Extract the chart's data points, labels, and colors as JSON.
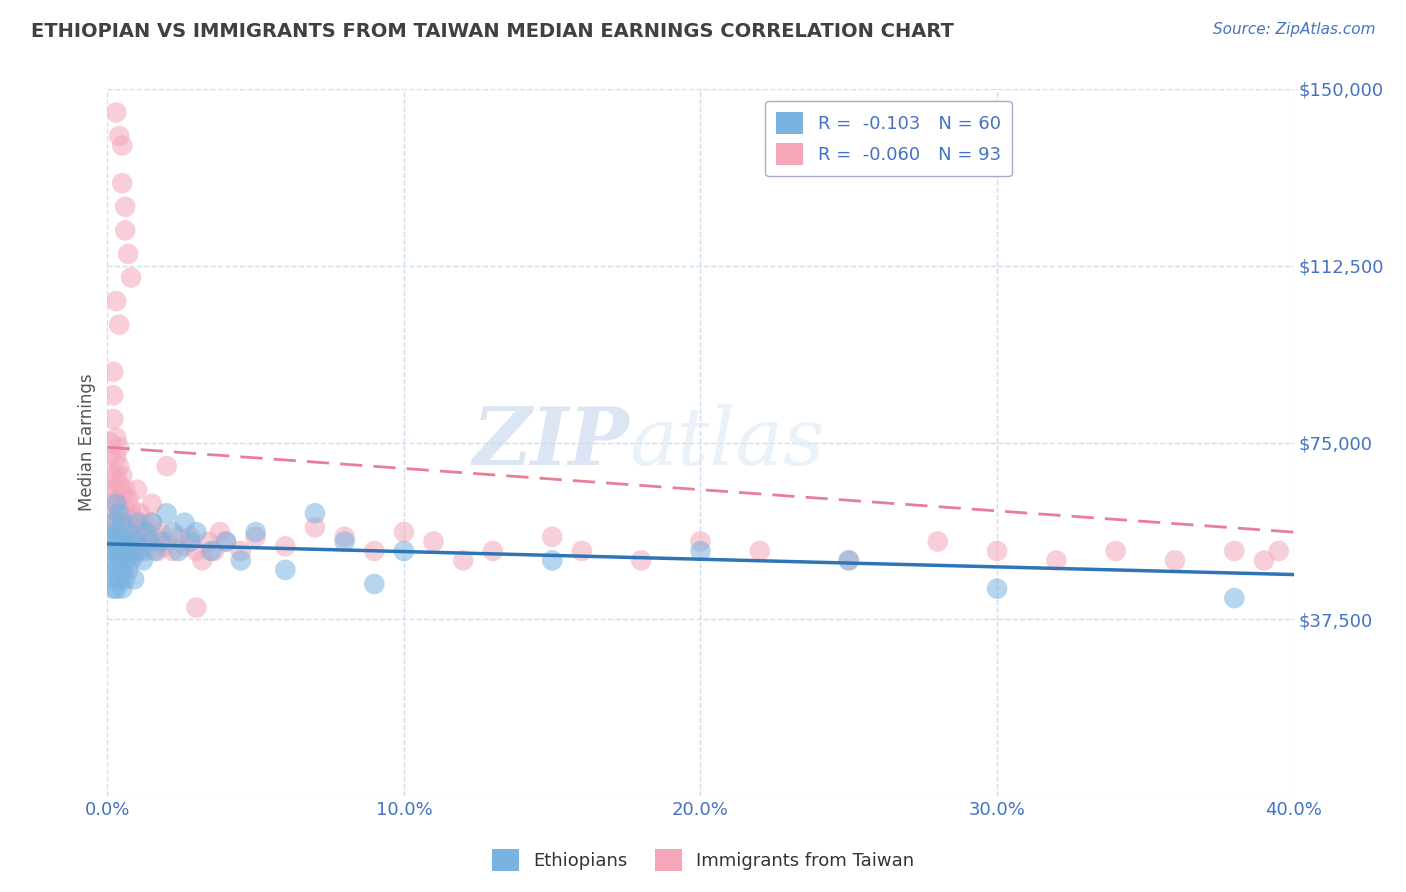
{
  "title": "ETHIOPIAN VS IMMIGRANTS FROM TAIWAN MEDIAN EARNINGS CORRELATION CHART",
  "source_text": "Source: ZipAtlas.com",
  "ylabel": "Median Earnings",
  "xlim": [
    0.0,
    0.4
  ],
  "ylim": [
    0,
    150000
  ],
  "yticks": [
    0,
    37500,
    75000,
    112500,
    150000
  ],
  "ytick_labels": [
    "",
    "$37,500",
    "$75,000",
    "$112,500",
    "$150,000"
  ],
  "xticks": [
    0.0,
    0.1,
    0.2,
    0.3,
    0.4
  ],
  "xtick_labels": [
    "0.0%",
    "10.0%",
    "20.0%",
    "30.0%",
    "40.0%"
  ],
  "blue_color": "#7AB3E0",
  "pink_color": "#F4A7B9",
  "blue_line_color": "#2E75B6",
  "pink_line_color": "#E87D9A",
  "title_color": "#404040",
  "axis_color": "#4472C4",
  "grid_color": "#C5D5E8",
  "legend_R_blue": "R =  -0.103",
  "legend_N_blue": "N = 60",
  "legend_R_pink": "R =  -0.060",
  "legend_N_pink": "N = 93",
  "legend_label_blue": "Ethiopians",
  "legend_label_pink": "Immigrants from Taiwan",
  "watermark_zip": "ZIP",
  "watermark_atlas": "atlas",
  "blue_scatter_x": [
    0.001,
    0.001,
    0.001,
    0.002,
    0.002,
    0.002,
    0.002,
    0.002,
    0.003,
    0.003,
    0.003,
    0.003,
    0.003,
    0.004,
    0.004,
    0.004,
    0.004,
    0.005,
    0.005,
    0.005,
    0.005,
    0.006,
    0.006,
    0.006,
    0.007,
    0.007,
    0.007,
    0.008,
    0.008,
    0.009,
    0.009,
    0.01,
    0.01,
    0.011,
    0.012,
    0.013,
    0.014,
    0.015,
    0.016,
    0.018,
    0.02,
    0.022,
    0.024,
    0.026,
    0.028,
    0.03,
    0.035,
    0.04,
    0.045,
    0.05,
    0.06,
    0.07,
    0.08,
    0.09,
    0.1,
    0.15,
    0.2,
    0.25,
    0.3,
    0.38
  ],
  "blue_scatter_y": [
    52000,
    48000,
    55000,
    46000,
    50000,
    54000,
    58000,
    44000,
    52000,
    48000,
    56000,
    44000,
    62000,
    50000,
    46000,
    54000,
    60000,
    52000,
    48000,
    44000,
    58000,
    50000,
    54000,
    46000,
    52000,
    48000,
    56000,
    50000,
    54000,
    52000,
    46000,
    54000,
    58000,
    52000,
    50000,
    56000,
    54000,
    58000,
    52000,
    54000,
    60000,
    56000,
    52000,
    58000,
    54000,
    56000,
    52000,
    54000,
    50000,
    56000,
    48000,
    60000,
    54000,
    45000,
    52000,
    50000,
    52000,
    50000,
    44000,
    42000
  ],
  "pink_scatter_x": [
    0.001,
    0.001,
    0.001,
    0.001,
    0.001,
    0.001,
    0.002,
    0.002,
    0.002,
    0.002,
    0.002,
    0.002,
    0.002,
    0.003,
    0.003,
    0.003,
    0.003,
    0.003,
    0.003,
    0.004,
    0.004,
    0.004,
    0.004,
    0.004,
    0.005,
    0.005,
    0.005,
    0.005,
    0.006,
    0.006,
    0.006,
    0.007,
    0.007,
    0.007,
    0.008,
    0.008,
    0.008,
    0.009,
    0.009,
    0.009,
    0.01,
    0.01,
    0.011,
    0.011,
    0.012,
    0.012,
    0.013,
    0.013,
    0.014,
    0.015,
    0.016,
    0.017,
    0.018,
    0.019,
    0.02,
    0.022,
    0.024,
    0.026,
    0.028,
    0.03,
    0.032,
    0.034,
    0.036,
    0.038,
    0.04,
    0.045,
    0.05,
    0.06,
    0.07,
    0.08,
    0.09,
    0.1,
    0.11,
    0.12,
    0.13,
    0.15,
    0.16,
    0.18,
    0.2,
    0.22,
    0.25,
    0.28,
    0.3,
    0.32,
    0.34,
    0.36,
    0.38,
    0.39,
    0.395,
    0.01,
    0.02,
    0.03,
    0.015
  ],
  "pink_scatter_y": [
    75000,
    72000,
    68000,
    65000,
    62000,
    60000,
    58000,
    56000,
    54000,
    52000,
    90000,
    85000,
    80000,
    76000,
    72000,
    68000,
    65000,
    62000,
    58000,
    74000,
    70000,
    66000,
    63000,
    60000,
    68000,
    64000,
    60000,
    56000,
    65000,
    61000,
    57000,
    63000,
    59000,
    55000,
    61000,
    57000,
    53000,
    59000,
    55000,
    51000,
    57000,
    53000,
    60000,
    56000,
    58000,
    54000,
    56000,
    52000,
    54000,
    58000,
    55000,
    52000,
    56000,
    53000,
    54000,
    52000,
    55000,
    53000,
    55000,
    52000,
    50000,
    54000,
    52000,
    56000,
    54000,
    52000,
    55000,
    53000,
    57000,
    55000,
    52000,
    56000,
    54000,
    50000,
    52000,
    55000,
    52000,
    50000,
    54000,
    52000,
    50000,
    54000,
    52000,
    50000,
    52000,
    50000,
    52000,
    50000,
    52000,
    65000,
    70000,
    40000,
    62000
  ],
  "pink_high_x": [
    0.003,
    0.004,
    0.005,
    0.005,
    0.006,
    0.006,
    0.007,
    0.008,
    0.003,
    0.004
  ],
  "pink_high_y": [
    145000,
    140000,
    138000,
    130000,
    125000,
    120000,
    115000,
    110000,
    105000,
    100000
  ]
}
